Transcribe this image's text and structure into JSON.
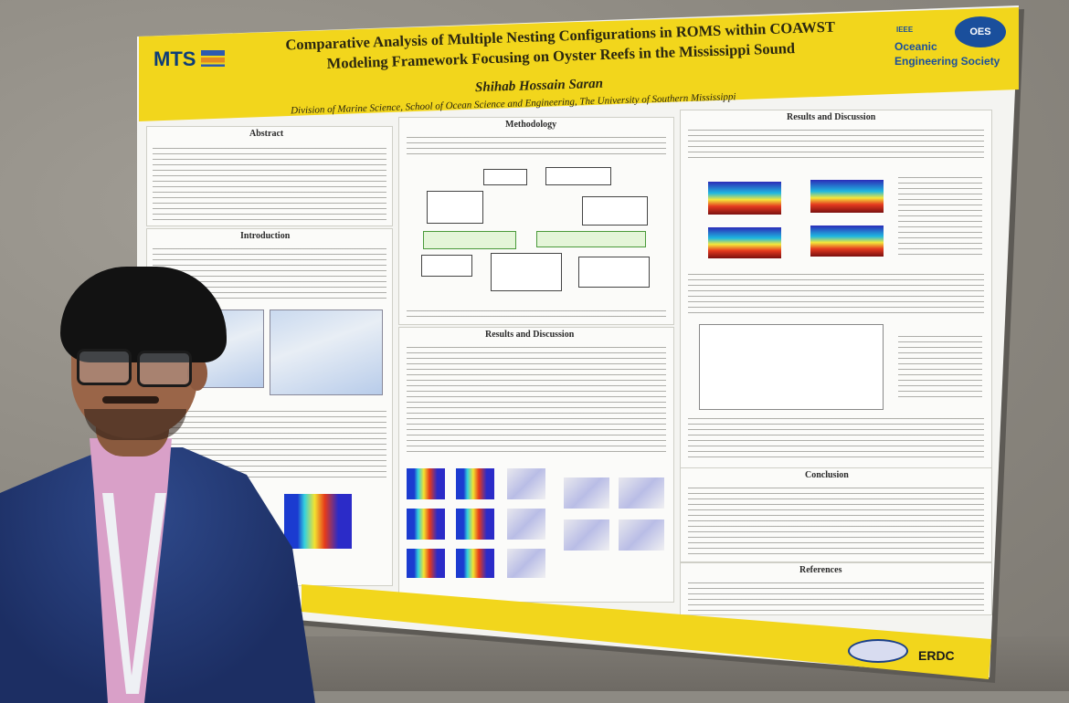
{
  "poster": {
    "title_line1": "Comparative Analysis of Multiple Nesting Configurations in ROMS within COAWST",
    "title_line2": "Modeling Framework Focusing on Oyster Reefs in the Mississippi Sound",
    "author": "Shihab Hossain Saran",
    "affiliation": "Division of Marine Science, School of Ocean Science and Engineering, The University of Southern Mississippi",
    "sections": {
      "abstract": "Abstract",
      "introduction": "Introduction",
      "methodology": "Methodology",
      "results_mid": "Results and Discussion",
      "results_right": "Results and Discussion",
      "conclusion": "Conclusion",
      "references": "References"
    },
    "logos": {
      "mts": "MTS",
      "ieee": "IEEE",
      "oes_line1": "Oceanic",
      "oes_line2": "Engineering Society",
      "oes_emblem": "OES",
      "erdc": "ERDC"
    }
  },
  "colors": {
    "banner": "#f2d61c",
    "wall": "#8d8a83",
    "jacket": "#1c2e63",
    "shirt": "#d9a0c8"
  }
}
